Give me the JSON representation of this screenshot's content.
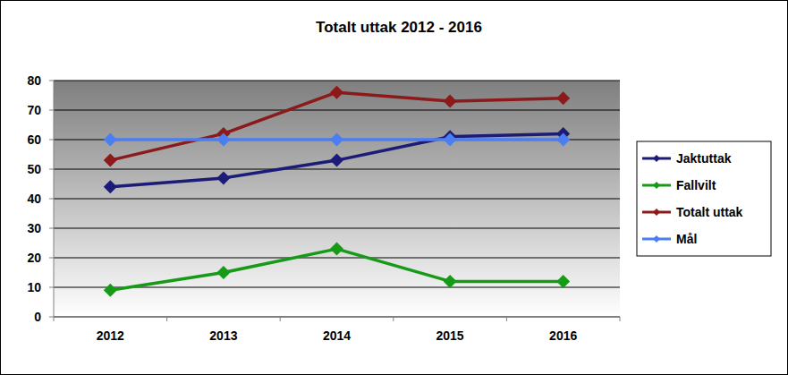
{
  "chart_data": {
    "type": "line",
    "title": "Totalt uttak 2012 - 2016",
    "categories": [
      "2012",
      "2013",
      "2014",
      "2015",
      "2016"
    ],
    "series": [
      {
        "name": "Jaktuttak",
        "color": "#1c1c78",
        "values": [
          44,
          47,
          53,
          61,
          62
        ]
      },
      {
        "name": "Fallvilt",
        "color": "#179a17",
        "values": [
          9,
          15,
          23,
          12,
          12
        ]
      },
      {
        "name": "Totalt uttak",
        "color": "#8c1a1a",
        "values": [
          53,
          62,
          76,
          73,
          74
        ]
      },
      {
        "name": "Mål",
        "color": "#4a7ef2",
        "values": [
          60,
          60,
          60,
          60,
          60
        ]
      }
    ],
    "ylim": [
      0,
      80
    ],
    "yticks": [
      0,
      10,
      20,
      30,
      40,
      50,
      60,
      70,
      80
    ],
    "grid": true,
    "legend": "right",
    "marker": "diamond"
  }
}
